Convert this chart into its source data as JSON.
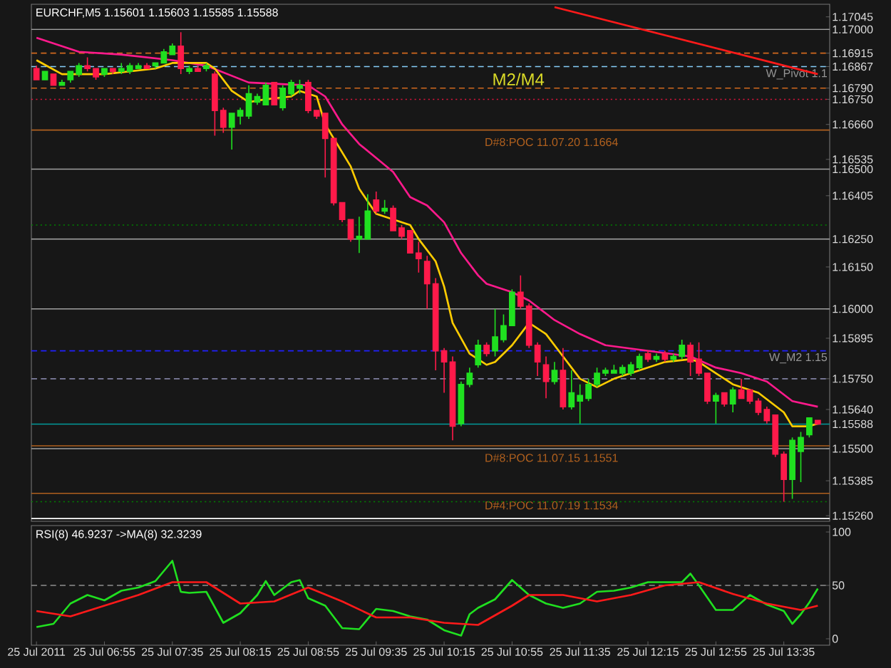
{
  "chart_data": [
    {
      "type": "candlestick",
      "title": "EURCHF,M5  1.15601 1.15603 1.15585 1.15588",
      "tick_labels": "y",
      "xlim": [
        "2011-07-25T06:12",
        "2011-07-25T14:02"
      ],
      "ylim": [
        1.1524,
        1.1709
      ],
      "yticks": [
        1.17045,
        {
          "value": 1.17,
          "label": "1.17000"
        },
        1.16915,
        1.16867,
        {
          "value": 1.1679,
          "label": "1.16790"
        },
        {
          "value": 1.1675,
          "label": "1.16750"
        },
        {
          "value": 1.1666,
          "label": "1.16660"
        },
        1.16535,
        {
          "value": 1.165,
          "label": "1.16500"
        },
        1.16405,
        {
          "value": 1.1625,
          "label": "1.16250"
        },
        {
          "value": 1.1615,
          "label": "1.16150"
        },
        {
          "value": 1.16,
          "label": "1.16000"
        },
        1.15895,
        {
          "value": 1.1575,
          "label": "1.15750"
        },
        {
          "value": 1.1564,
          "label": "1.15640"
        },
        1.15588,
        {
          "value": 1.155,
          "label": "1.15500"
        },
        1.15385,
        {
          "value": 1.1526,
          "label": "1.15260"
        }
      ],
      "x": [
        "2011-07-25T06:15",
        "2011-07-25T06:20",
        "2011-07-25T06:25",
        "2011-07-25T06:30",
        "2011-07-25T06:35",
        "2011-07-25T06:40",
        "2011-07-25T06:45",
        "2011-07-25T06:50",
        "2011-07-25T06:55",
        "2011-07-25T07:00",
        "2011-07-25T07:05",
        "2011-07-25T07:10",
        "2011-07-25T07:15",
        "2011-07-25T07:20",
        "2011-07-25T07:25",
        "2011-07-25T07:30",
        "2011-07-25T07:35",
        "2011-07-25T07:40",
        "2011-07-25T07:45",
        "2011-07-25T07:50",
        "2011-07-25T07:55",
        "2011-07-25T08:00",
        "2011-07-25T08:05",
        "2011-07-25T08:10",
        "2011-07-25T08:15",
        "2011-07-25T08:20",
        "2011-07-25T08:25",
        "2011-07-25T08:30",
        "2011-07-25T08:35",
        "2011-07-25T08:40",
        "2011-07-25T08:45",
        "2011-07-25T08:50",
        "2011-07-25T08:55",
        "2011-07-25T09:00",
        "2011-07-25T09:05",
        "2011-07-25T09:10",
        "2011-07-25T09:15",
        "2011-07-25T09:20",
        "2011-07-25T09:25",
        "2011-07-25T09:30",
        "2011-07-25T09:35",
        "2011-07-25T09:40",
        "2011-07-25T09:45",
        "2011-07-25T09:50",
        "2011-07-25T09:55",
        "2011-07-25T10:00",
        "2011-07-25T10:05",
        "2011-07-25T10:10",
        "2011-07-25T10:15",
        "2011-07-25T10:20",
        "2011-07-25T10:25",
        "2011-07-25T10:30",
        "2011-07-25T10:35",
        "2011-07-25T10:40",
        "2011-07-25T10:45",
        "2011-07-25T10:50",
        "2011-07-25T10:55",
        "2011-07-25T11:00",
        "2011-07-25T11:05",
        "2011-07-25T11:10",
        "2011-07-25T11:15",
        "2011-07-25T11:20",
        "2011-07-25T11:25",
        "2011-07-25T11:30",
        "2011-07-25T11:35",
        "2011-07-25T11:40",
        "2011-07-25T11:45",
        "2011-07-25T11:50",
        "2011-07-25T11:55",
        "2011-07-25T12:00",
        "2011-07-25T12:05",
        "2011-07-25T12:10",
        "2011-07-25T12:15",
        "2011-07-25T12:20",
        "2011-07-25T12:25",
        "2011-07-25T12:30",
        "2011-07-25T12:35",
        "2011-07-25T12:40",
        "2011-07-25T12:45",
        "2011-07-25T12:50",
        "2011-07-25T12:55",
        "2011-07-25T13:00",
        "2011-07-25T13:05",
        "2011-07-25T13:10",
        "2011-07-25T13:15",
        "2011-07-25T13:20",
        "2011-07-25T13:25",
        "2011-07-25T13:30",
        "2011-07-25T13:35",
        "2011-07-25T13:40",
        "2011-07-25T13:45",
        "2011-07-25T13:50",
        "2011-07-25T13:55"
      ],
      "ohlc": [
        [
          1.1686,
          1.1687,
          1.1682,
          1.1682
        ],
        [
          1.1682,
          1.1685,
          1.1682,
          1.1685
        ],
        [
          1.1684,
          1.1684,
          1.168,
          1.168
        ],
        [
          1.168,
          1.1682,
          1.168,
          1.1681
        ],
        [
          1.1682,
          1.1685,
          1.1681,
          1.1685
        ],
        [
          1.1684,
          1.1688,
          1.1683,
          1.1687
        ],
        [
          1.1687,
          1.169,
          1.1685,
          1.1686
        ],
        [
          1.1686,
          1.1686,
          1.1682,
          1.1683
        ],
        [
          1.1684,
          1.1686,
          1.1683,
          1.1686
        ],
        [
          1.1686,
          1.1686,
          1.1684,
          1.1685
        ],
        [
          1.1685,
          1.1688,
          1.1684,
          1.1686
        ],
        [
          1.1685,
          1.1688,
          1.1684,
          1.1687
        ],
        [
          1.1686,
          1.1688,
          1.1686,
          1.1687
        ],
        [
          1.1687,
          1.1688,
          1.1686,
          1.1686
        ],
        [
          1.1687,
          1.1688,
          1.1686,
          1.1688
        ],
        [
          1.1688,
          1.1693,
          1.1688,
          1.1692
        ],
        [
          1.1691,
          1.1695,
          1.1691,
          1.1694
        ],
        [
          1.1694,
          1.1699,
          1.1684,
          1.1686
        ],
        [
          1.1685,
          1.1687,
          1.1684,
          1.1686
        ],
        [
          1.1686,
          1.1687,
          1.1685,
          1.1685
        ],
        [
          1.1686,
          1.1688,
          1.1685,
          1.1687
        ],
        [
          1.1684,
          1.1685,
          1.1662,
          1.1671
        ],
        [
          1.1671,
          1.1672,
          1.1663,
          1.1665
        ],
        [
          1.1665,
          1.167,
          1.1657,
          1.167
        ],
        [
          1.1669,
          1.1672,
          1.1666,
          1.1671
        ],
        [
          1.1669,
          1.168,
          1.1668,
          1.1677
        ],
        [
          1.1674,
          1.1677,
          1.1673,
          1.1676
        ],
        [
          1.1673,
          1.1681,
          1.1673,
          1.168
        ],
        [
          1.1681,
          1.1681,
          1.1673,
          1.1673
        ],
        [
          1.1672,
          1.168,
          1.1671,
          1.1679
        ],
        [
          1.1677,
          1.1682,
          1.1676,
          1.1681
        ],
        [
          1.1679,
          1.1682,
          1.1677,
          1.168
        ],
        [
          1.1681,
          1.1682,
          1.167,
          1.1671
        ],
        [
          1.1671,
          1.1671,
          1.1668,
          1.1669
        ],
        [
          1.167,
          1.167,
          1.1647,
          1.1661
        ],
        [
          1.1661,
          1.1661,
          1.1637,
          1.1638
        ],
        [
          1.1638,
          1.1638,
          1.1631,
          1.1632
        ],
        [
          1.1632,
          1.1632,
          1.1624,
          1.1625
        ],
        [
          1.1625,
          1.1633,
          1.162,
          1.1626
        ],
        [
          1.1625,
          1.1641,
          1.1625,
          1.1635
        ],
        [
          1.1639,
          1.1642,
          1.1634,
          1.1635
        ],
        [
          1.1635,
          1.1639,
          1.1634,
          1.1636
        ],
        [
          1.1636,
          1.1637,
          1.1628,
          1.1628
        ],
        [
          1.1629,
          1.163,
          1.1625,
          1.1626
        ],
        [
          1.1628,
          1.1628,
          1.162,
          1.162
        ],
        [
          1.162,
          1.1624,
          1.1613,
          1.1618
        ],
        [
          1.1617,
          1.1619,
          1.16,
          1.1609
        ],
        [
          1.1609,
          1.1611,
          1.1578,
          1.1585
        ],
        [
          1.1585,
          1.1586,
          1.157,
          1.1581
        ],
        [
          1.1581,
          1.1583,
          1.1553,
          1.1558
        ],
        [
          1.1559,
          1.1574,
          1.1558,
          1.1573
        ],
        [
          1.1573,
          1.1579,
          1.1572,
          1.1577
        ],
        [
          1.158,
          1.1589,
          1.1579,
          1.1587
        ],
        [
          1.1587,
          1.1588,
          1.1583,
          1.1584
        ],
        [
          1.1585,
          1.16,
          1.1583,
          1.159
        ],
        [
          1.1589,
          1.1598,
          1.1588,
          1.1594
        ],
        [
          1.1594,
          1.1607,
          1.1594,
          1.1606
        ],
        [
          1.1606,
          1.1612,
          1.16,
          1.1601
        ],
        [
          1.1601,
          1.1602,
          1.1586,
          1.1587
        ],
        [
          1.1587,
          1.1588,
          1.1576,
          1.1581
        ],
        [
          1.158,
          1.1583,
          1.1568,
          1.1574
        ],
        [
          1.1574,
          1.1581,
          1.1573,
          1.1578
        ],
        [
          1.1578,
          1.1586,
          1.1564,
          1.1565
        ],
        [
          1.1565,
          1.1578,
          1.1564,
          1.157
        ],
        [
          1.1567,
          1.1573,
          1.1559,
          1.1569
        ],
        [
          1.1568,
          1.1575,
          1.1567,
          1.1573
        ],
        [
          1.1573,
          1.1579,
          1.1572,
          1.1577
        ],
        [
          1.1577,
          1.1579,
          1.1576,
          1.1578
        ],
        [
          1.1577,
          1.158,
          1.1577,
          1.1578
        ],
        [
          1.1577,
          1.158,
          1.1576,
          1.1579
        ],
        [
          1.1577,
          1.1581,
          1.1576,
          1.158
        ],
        [
          1.1579,
          1.1584,
          1.1578,
          1.1583
        ],
        [
          1.1584,
          1.1585,
          1.1581,
          1.1582
        ],
        [
          1.1582,
          1.1584,
          1.1581,
          1.1583
        ],
        [
          1.1584,
          1.1585,
          1.1581,
          1.1582
        ],
        [
          1.1582,
          1.1584,
          1.1581,
          1.1583
        ],
        [
          1.1583,
          1.1589,
          1.1582,
          1.1587
        ],
        [
          1.1587,
          1.1588,
          1.1576,
          1.1581
        ],
        [
          1.1582,
          1.1588,
          1.1576,
          1.1577
        ],
        [
          1.1577,
          1.1577,
          1.1566,
          1.1567
        ],
        [
          1.1567,
          1.157,
          1.1559,
          1.1569
        ],
        [
          1.157,
          1.157,
          1.1565,
          1.1566
        ],
        [
          1.1566,
          1.1572,
          1.1563,
          1.1571
        ],
        [
          1.1571,
          1.1575,
          1.1568,
          1.1568
        ],
        [
          1.1571,
          1.1571,
          1.1566,
          1.1567
        ],
        [
          1.1567,
          1.1568,
          1.1562,
          1.1563
        ],
        [
          1.1564,
          1.1565,
          1.1559,
          1.156
        ],
        [
          1.1562,
          1.1562,
          1.1547,
          1.1548
        ],
        [
          1.1548,
          1.1549,
          1.1531,
          1.1539
        ],
        [
          1.1539,
          1.1554,
          1.1532,
          1.1553
        ],
        [
          1.1549,
          1.1556,
          1.1538,
          1.1554
        ],
        [
          1.1555,
          1.1561,
          1.1554,
          1.1561
        ],
        [
          1.15601,
          1.15603,
          1.15585,
          1.15588
        ]
      ],
      "colors": [
        "#ff1a4a",
        "#20e020",
        "#ff1a4a",
        "#20e020",
        "#20e020",
        "#20e020",
        "#ff1a4a",
        "#ff1a4a",
        "#20e020",
        "#ff1a4a",
        "#20e020",
        "#20e020",
        "#20e020",
        "#ff1a4a",
        "#20e020",
        "#20e020",
        "#20e020",
        "#ff1a4a",
        "#20e020",
        "#ff1a4a",
        "#20e020",
        "#ff1a4a",
        "#ff1a4a",
        "#20e020",
        "#20e020",
        "#20e020",
        "#20e020",
        "#20e020",
        "#ff1a4a",
        "#20e020",
        "#20e020",
        "#20e020",
        "#ff1a4a",
        "#ff1a4a",
        "#ff1a4a",
        "#ff1a4a",
        "#ff1a4a",
        "#ff1a4a",
        "#20e020",
        "#20e020",
        "#ff1a4a",
        "#20e020",
        "#ff1a4a",
        "#ff1a4a",
        "#ff1a4a",
        "#ff1a4a",
        "#ff1a4a",
        "#ff1a4a",
        "#ff1a4a",
        "#ff1a4a",
        "#20e020",
        "#20e020",
        "#20e020",
        "#ff1a4a",
        "#20e020",
        "#20e020",
        "#20e020",
        "#ff1a4a",
        "#ff1a4a",
        "#ff1a4a",
        "#ff1a4a",
        "#20e020",
        "#ff1a4a",
        "#20e020",
        "#20e020",
        "#20e020",
        "#20e020",
        "#20e020",
        "#20e020",
        "#20e020",
        "#20e020",
        "#20e020",
        "#ff1a4a",
        "#20e020",
        "#ff1a4a",
        "#20e020",
        "#20e020",
        "#ff1a4a",
        "#ff1a4a",
        "#ff1a4a",
        "#20e020",
        "#ff1a4a",
        "#20e020",
        "#ff1a4a",
        "#ff1a4a",
        "#ff1a4a",
        "#ff1a4a",
        "#ff1a4a",
        "#ff1a4a",
        "#20e020",
        "#20e020",
        "#20e020",
        "#ff1a4a"
      ],
      "series": [
        {
          "type": "line",
          "color": "#ff1a1a",
          "x": [
            "2011-07-25T11:20",
            "2011-07-25T13:55"
          ],
          "values": [
            1.1708,
            1.1684
          ]
        },
        {
          "type": "line",
          "color": "#ff1a8c",
          "x": [
            "2011-07-25T06:15",
            "2011-07-25T06:40",
            "2011-07-25T07:05",
            "2011-07-25T07:35",
            "2011-07-25T07:55",
            "2011-07-25T08:20",
            "2011-07-25T08:55",
            "2011-07-25T09:05",
            "2011-07-25T09:15",
            "2011-07-25T09:25",
            "2011-07-25T09:35",
            "2011-07-25T09:45",
            "2011-07-25T09:55",
            "2011-07-25T10:05",
            "2011-07-25T10:15",
            "2011-07-25T10:25",
            "2011-07-25T10:35",
            "2011-07-25T10:40",
            "2011-07-25T10:55",
            "2011-07-25T11:05",
            "2011-07-25T11:20",
            "2011-07-25T11:35",
            "2011-07-25T11:50",
            "2011-07-25T12:15",
            "2011-07-25T12:40",
            "2011-07-25T12:55",
            "2011-07-25T13:10",
            "2011-07-25T13:25",
            "2011-07-25T13:40",
            "2011-07-25T13:55"
          ],
          "values": [
            1.1697,
            1.1692,
            1.1691,
            1.1689,
            1.1687,
            1.1681,
            1.168,
            1.1676,
            1.1666,
            1.1659,
            1.1654,
            1.1649,
            1.164,
            1.1637,
            1.1631,
            1.162,
            1.1612,
            1.1609,
            1.1606,
            1.1603,
            1.1596,
            1.1591,
            1.1587,
            1.1585,
            1.1583,
            1.1579,
            1.1577,
            1.1574,
            1.1567,
            1.1565
          ]
        },
        {
          "type": "line",
          "color": "#ffcc00",
          "x": [
            "2011-07-25T06:15",
            "2011-07-25T06:30",
            "2011-07-25T06:55",
            "2011-07-25T07:25",
            "2011-07-25T07:35",
            "2011-07-25T07:55",
            "2011-07-25T08:00",
            "2011-07-25T08:10",
            "2011-07-25T08:20",
            "2011-07-25T08:30",
            "2011-07-25T08:45",
            "2011-07-25T08:50",
            "2011-07-25T09:00",
            "2011-07-25T09:05",
            "2011-07-25T09:20",
            "2011-07-25T09:25",
            "2011-07-25T09:35",
            "2011-07-25T09:55",
            "2011-07-25T10:00",
            "2011-07-25T10:10",
            "2011-07-25T10:15",
            "2011-07-25T10:20",
            "2011-07-25T10:30",
            "2011-07-25T10:40",
            "2011-07-25T10:45",
            "2011-07-25T10:55",
            "2011-07-25T11:05",
            "2011-07-25T11:15",
            "2011-07-25T11:25",
            "2011-07-25T11:35",
            "2011-07-25T11:45",
            "2011-07-25T11:55",
            "2011-07-25T12:10",
            "2011-07-25T12:25",
            "2011-07-25T12:40",
            "2011-07-25T12:45",
            "2011-07-25T12:55",
            "2011-07-25T13:05",
            "2011-07-25T13:20",
            "2011-07-25T13:35",
            "2011-07-25T13:40",
            "2011-07-25T13:50",
            "2011-07-25T13:55"
          ],
          "values": [
            1.1689,
            1.1684,
            1.1684,
            1.1686,
            1.1688,
            1.1688,
            1.1686,
            1.1678,
            1.1674,
            1.1675,
            1.1676,
            1.1678,
            1.1676,
            1.1666,
            1.1651,
            1.1643,
            1.1634,
            1.163,
            1.1625,
            1.1617,
            1.1608,
            1.1595,
            1.1584,
            1.158,
            1.1581,
            1.1587,
            1.1595,
            1.1591,
            1.1583,
            1.1575,
            1.1572,
            1.1575,
            1.1578,
            1.1581,
            1.1582,
            1.1581,
            1.1577,
            1.1573,
            1.157,
            1.1563,
            1.1558,
            1.1558,
            1.1559
          ]
        }
      ],
      "ref_lines": [
        {
          "axis": "y",
          "value": 1.17,
          "color": "#a0a0a0",
          "line_style": "solid"
        },
        {
          "axis": "y",
          "value": 1.16915,
          "color": "#d2691e",
          "line_style": "dashed"
        },
        {
          "axis": "y",
          "value": 1.16867,
          "color": "#87cefa",
          "line_style": "dashed",
          "label": "W_Pivot 1.1"
        },
        {
          "axis": "y",
          "value": 1.1679,
          "color": "#d2691e",
          "line_style": "dashed"
        },
        {
          "axis": "y",
          "value": 1.1675,
          "color": "#dc143c",
          "line_style": "dotted"
        },
        {
          "axis": "y",
          "value": 1.1664,
          "color": "#b0601e",
          "line_style": "solid",
          "label": "D#8:POC 11.07.20 1.1664"
        },
        {
          "axis": "y",
          "value": 1.165,
          "color": "#a0a0a0",
          "line_style": "solid"
        },
        {
          "axis": "y",
          "value": 1.163,
          "color": "#008000",
          "line_style": "dotted"
        },
        {
          "axis": "y",
          "value": 1.1625,
          "color": "#a0a0a0",
          "line_style": "solid"
        },
        {
          "axis": "y",
          "value": 1.16,
          "color": "#a0a0a0",
          "line_style": "solid"
        },
        {
          "axis": "y",
          "value": 1.1585,
          "color": "#2020ff",
          "line_style": "dashed",
          "label": "W_M2 1.15"
        },
        {
          "axis": "y",
          "value": 1.1575,
          "color": "#8080a0",
          "line_style": "dashed"
        },
        {
          "axis": "y",
          "value": 1.15588,
          "color": "#00a0a0",
          "line_style": "solid"
        },
        {
          "axis": "y",
          "value": 1.1551,
          "color": "#b0601e",
          "line_style": "solid",
          "label": "D#8:POC 11.07.15 1.1551"
        },
        {
          "axis": "y",
          "value": 1.155,
          "color": "#a0a0a0",
          "line_style": "solid"
        },
        {
          "axis": "y",
          "value": 1.1534,
          "color": "#b0601e",
          "line_style": "solid",
          "label": "D#4:POC 11.07.19 1.1534"
        },
        {
          "axis": "y",
          "value": 1.1531,
          "color": "#008000",
          "line_style": "dotted"
        },
        {
          "axis": "y",
          "value": 1.1525,
          "color": "#ffffff",
          "line_style": "solid"
        }
      ],
      "annotations": [
        "M2/M4"
      ]
    },
    {
      "type": "line",
      "title": "RSI(8) 46.9237  ->MA(8) 32.3239",
      "xlim": [
        "2011-07-25T06:12",
        "2011-07-25T14:02"
      ],
      "ylim": [
        -6,
        106
      ],
      "yticks": [
        0,
        50,
        100
      ],
      "xticks": [
        {
          "value": "2011-07-25T06:15",
          "label": "25 Jul 2011"
        },
        {
          "value": "2011-07-25T06:55",
          "label": "25 Jul 06:55"
        },
        {
          "value": "2011-07-25T07:35",
          "label": "25 Jul 07:35"
        },
        {
          "value": "2011-07-25T08:15",
          "label": "25 Jul 08:15"
        },
        {
          "value": "2011-07-25T08:55",
          "label": "25 Jul 08:55"
        },
        {
          "value": "2011-07-25T09:35",
          "label": "25 Jul 09:35"
        },
        {
          "value": "2011-07-25T10:15",
          "label": "25 Jul 10:15"
        },
        {
          "value": "2011-07-25T10:55",
          "label": "25 Jul 10:55"
        },
        {
          "value": "2011-07-25T11:35",
          "label": "25 Jul 11:35"
        },
        {
          "value": "2011-07-25T12:15",
          "label": "25 Jul 12:15"
        },
        {
          "value": "2011-07-25T12:55",
          "label": "25 Jul 12:55"
        },
        {
          "value": "2011-07-25T13:35",
          "label": "25 Jul 13:35"
        }
      ],
      "series": [
        {
          "color": "#20e020",
          "x": [
            "2011-07-25T06:15",
            "2011-07-25T06:25",
            "2011-07-25T06:35",
            "2011-07-25T06:45",
            "2011-07-25T06:55",
            "2011-07-25T07:05",
            "2011-07-25T07:15",
            "2011-07-25T07:25",
            "2011-07-25T07:35",
            "2011-07-25T07:40",
            "2011-07-25T07:45",
            "2011-07-25T07:55",
            "2011-07-25T08:05",
            "2011-07-25T08:15",
            "2011-07-25T08:25",
            "2011-07-25T08:30",
            "2011-07-25T08:35",
            "2011-07-25T08:45",
            "2011-07-25T08:50",
            "2011-07-25T08:55",
            "2011-07-25T09:05",
            "2011-07-25T09:15",
            "2011-07-25T09:25",
            "2011-07-25T09:35",
            "2011-07-25T09:45",
            "2011-07-25T09:55",
            "2011-07-25T10:05",
            "2011-07-25T10:15",
            "2011-07-25T10:25",
            "2011-07-25T10:30",
            "2011-07-25T10:35",
            "2011-07-25T10:45",
            "2011-07-25T10:55",
            "2011-07-25T11:05",
            "2011-07-25T11:15",
            "2011-07-25T11:25",
            "2011-07-25T11:35",
            "2011-07-25T11:45",
            "2011-07-25T11:55",
            "2011-07-25T12:05",
            "2011-07-25T12:15",
            "2011-07-25T12:25",
            "2011-07-25T12:35",
            "2011-07-25T12:40",
            "2011-07-25T12:45",
            "2011-07-25T12:55",
            "2011-07-25T13:05",
            "2011-07-25T13:15",
            "2011-07-25T13:25",
            "2011-07-25T13:35",
            "2011-07-25T13:40",
            "2011-07-25T13:45",
            "2011-07-25T13:50",
            "2011-07-25T13:55"
          ],
          "values": [
            11,
            14,
            33,
            41,
            36,
            45,
            48,
            54,
            73,
            44,
            43,
            44,
            15,
            24,
            41,
            54,
            41,
            53,
            55,
            38,
            31,
            10,
            9,
            28,
            26,
            21,
            18,
            8,
            3,
            23,
            29,
            37,
            55,
            41,
            33,
            29,
            33,
            44,
            45,
            48,
            53,
            53,
            53,
            61,
            50,
            27,
            27,
            41,
            32,
            26,
            14,
            23,
            34,
            47
          ]
        },
        {
          "color": "#ff1a1a",
          "x": [
            "2011-07-25T06:15",
            "2011-07-25T06:35",
            "2011-07-25T06:55",
            "2011-07-25T07:15",
            "2011-07-25T07:35",
            "2011-07-25T07:55",
            "2011-07-25T08:15",
            "2011-07-25T08:35",
            "2011-07-25T08:55",
            "2011-07-25T09:15",
            "2011-07-25T09:35",
            "2011-07-25T09:55",
            "2011-07-25T10:15",
            "2011-07-25T10:35",
            "2011-07-25T10:55",
            "2011-07-25T11:05",
            "2011-07-25T11:25",
            "2011-07-25T11:45",
            "2011-07-25T12:05",
            "2011-07-25T12:25",
            "2011-07-25T12:45",
            "2011-07-25T13:05",
            "2011-07-25T13:25",
            "2011-07-25T13:45",
            "2011-07-25T13:55"
          ],
          "values": [
            26,
            21,
            31,
            41,
            53,
            53,
            33,
            35,
            48,
            35,
            20,
            20,
            15,
            13,
            31,
            41,
            41,
            35,
            41,
            50,
            53,
            42,
            33,
            27,
            31
          ]
        }
      ],
      "ref_lines": [
        {
          "axis": "y",
          "value": 50,
          "color": "#909090",
          "line_style": "dashed"
        }
      ]
    }
  ]
}
